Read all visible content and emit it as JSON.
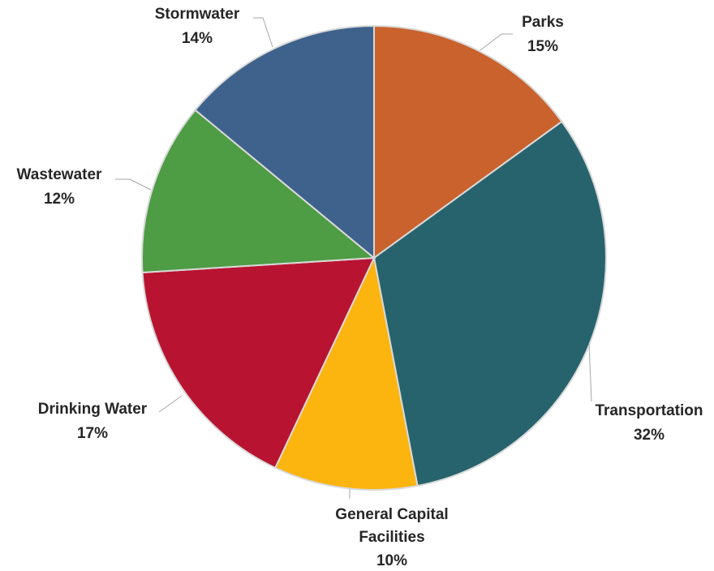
{
  "chart_data": {
    "type": "pie",
    "title": "",
    "start_angle_deg": 0,
    "direction": "clockwise",
    "slices": [
      {
        "label": "Parks",
        "value": 15,
        "pct_label": "15%",
        "color": "#C9622D"
      },
      {
        "label": "Transportation",
        "value": 32,
        "pct_label": "32%",
        "color": "#27636C"
      },
      {
        "label": "General Capital Facilities",
        "value": 10,
        "pct_label": "10%",
        "color": "#FCB40F"
      },
      {
        "label": "Drinking Water",
        "value": 17,
        "pct_label": "17%",
        "color": "#B81432"
      },
      {
        "label": "Wastewater",
        "value": 12,
        "pct_label": "12%",
        "color": "#4E9C44"
      },
      {
        "label": "Stormwater",
        "value": 14,
        "pct_label": "14%",
        "color": "#3E628C"
      }
    ],
    "label_lines": {
      "general_capital_facilities": [
        "General Capital",
        "Facilities"
      ]
    }
  }
}
